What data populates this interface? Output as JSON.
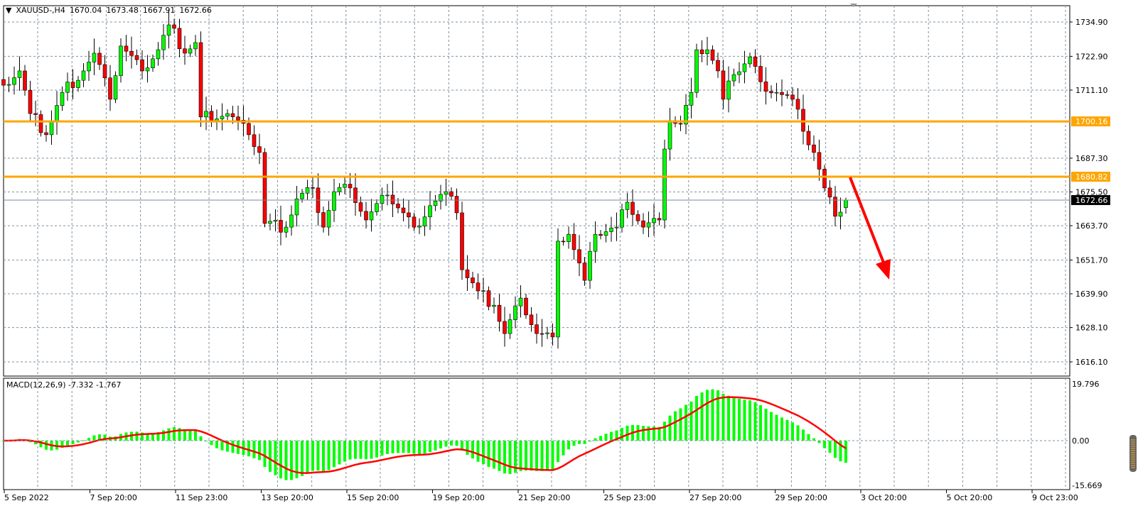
{
  "header": {
    "symbol": "XAUUSD-,H4",
    "open": "1670.04",
    "high": "1673.48",
    "low": "1667.91",
    "close": "1672.66"
  },
  "macd": {
    "label": "MACD(12,26,9) -7.332 -1.767",
    "axis_ticks": [
      "19.796",
      "0.00",
      "-15.669"
    ],
    "range": [
      -15.669,
      19.796
    ]
  },
  "colors": {
    "bull": "#00ff00",
    "bear": "#ff0000",
    "level": "#ffa500",
    "signal": "#ff0000",
    "histogram": "#00ff00",
    "arrow": "#ff0000"
  },
  "chart_data": {
    "type": "candlestick",
    "price_ticks": [
      "1734.90",
      "1722.90",
      "1711.10",
      "1687.30",
      "1675.50",
      "1663.70",
      "1651.70",
      "1639.90",
      "1628.10",
      "1616.10"
    ],
    "ylim": [
      1616.1,
      1734.9
    ],
    "time_labels": [
      "5 Sep 2022",
      "7 Sep 20:00",
      "11 Sep 23:00",
      "13 Sep 20:00",
      "15 Sep 20:00",
      "19 Sep 20:00",
      "21 Sep 20:00",
      "25 Sep 23:00",
      "27 Sep 20:00",
      "29 Sep 20:00",
      "3 Oct 20:00",
      "5 Oct 20:00",
      "9 Oct 23:00"
    ],
    "levels": [
      {
        "price": 1700.16,
        "label": "1700.16"
      },
      {
        "price": 1680.82,
        "label": "1680.82"
      }
    ],
    "bid": {
      "price": 1672.66,
      "label": "1672.66"
    },
    "close_points": [
      [
        0,
        1712.8
      ],
      [
        3,
        1717.8
      ],
      [
        5,
        1702.9
      ],
      [
        8,
        1695.5
      ],
      [
        11,
        1710.3
      ],
      [
        15,
        1717.8
      ],
      [
        17,
        1724
      ],
      [
        20,
        1707.9
      ],
      [
        22,
        1726.5
      ],
      [
        26,
        1717.8
      ],
      [
        29,
        1725.2
      ],
      [
        31,
        1733.9
      ],
      [
        34,
        1724
      ],
      [
        36,
        1727.7
      ],
      [
        37,
        1701.7
      ],
      [
        42,
        1702.9
      ],
      [
        46,
        1695.5
      ],
      [
        48,
        1689.3
      ],
      [
        49,
        1664.5
      ],
      [
        53,
        1663.2
      ],
      [
        55,
        1673.1
      ],
      [
        58,
        1676.9
      ],
      [
        60,
        1663.2
      ],
      [
        62,
        1675.6
      ],
      [
        65,
        1676.9
      ],
      [
        68,
        1665.7
      ],
      [
        72,
        1674.4
      ],
      [
        75,
        1668.2
      ],
      [
        77,
        1663.2
      ],
      [
        80,
        1670.7
      ],
      [
        83,
        1675.6
      ],
      [
        85,
        1668.2
      ],
      [
        86,
        1648.3
      ],
      [
        89,
        1640.9
      ],
      [
        92,
        1635.9
      ],
      [
        94,
        1626
      ],
      [
        97,
        1638.4
      ],
      [
        100,
        1626
      ],
      [
        103,
        1624.8
      ],
      [
        104,
        1658.3
      ],
      [
        106,
        1660.7
      ],
      [
        109,
        1644.6
      ],
      [
        111,
        1660.7
      ],
      [
        115,
        1663.2
      ],
      [
        117,
        1671.9
      ],
      [
        120,
        1663.2
      ],
      [
        123,
        1665.7
      ],
      [
        124,
        1690.5
      ],
      [
        125,
        1700.4
      ],
      [
        127,
        1699.2
      ],
      [
        129,
        1710.3
      ],
      [
        130,
        1725.2
      ],
      [
        132,
        1725.2
      ],
      [
        134,
        1717.8
      ],
      [
        135,
        1707.9
      ],
      [
        137,
        1716.5
      ],
      [
        140,
        1722.7
      ],
      [
        142,
        1714
      ],
      [
        145,
        1710.3
      ],
      [
        148,
        1707.9
      ],
      [
        150,
        1696.7
      ],
      [
        152,
        1689.3
      ],
      [
        154,
        1676.9
      ],
      [
        156,
        1667
      ],
      [
        158,
        1672.66
      ]
    ],
    "last_bar": {
      "open": 1670.04,
      "high": 1673.48,
      "low": 1667.91,
      "close": 1672.66
    }
  }
}
